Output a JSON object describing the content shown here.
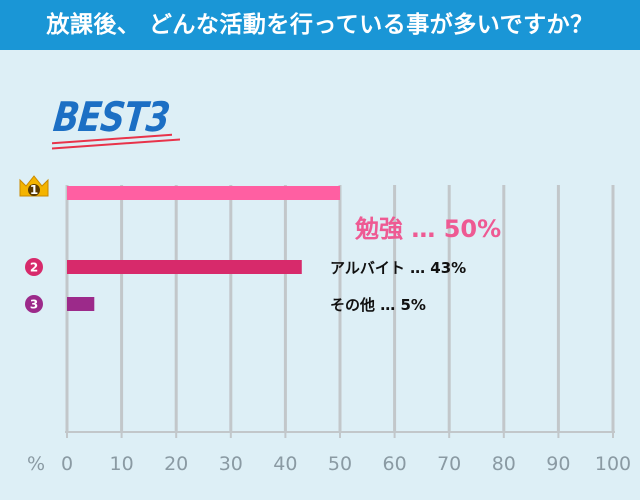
{
  "header": {
    "title": "放課後、 どんな活動を行っている事が多いですか？"
  },
  "badge": {
    "text": "BEST3"
  },
  "unit_label": "%",
  "chart_data": {
    "type": "bar",
    "orientation": "horizontal",
    "categories": [
      "勉強",
      "アルバイト",
      "その他"
    ],
    "values": [
      50,
      43,
      5
    ],
    "value_labels": [
      "勉強 … 50%",
      "アルバイト … 43%",
      "その他 … 5%"
    ],
    "ranks": [
      "1",
      "2",
      "3"
    ],
    "colors": [
      "#ff5fa2",
      "#d72a6b",
      "#9c2a8a"
    ],
    "rank_colors": [
      "#f4b400",
      "#d72a6b",
      "#9c2a8a"
    ],
    "xlim": [
      0,
      100
    ],
    "xticks": [
      0,
      10,
      20,
      30,
      40,
      50,
      60,
      70,
      80,
      90,
      100
    ],
    "grid": true,
    "legend": "none"
  }
}
